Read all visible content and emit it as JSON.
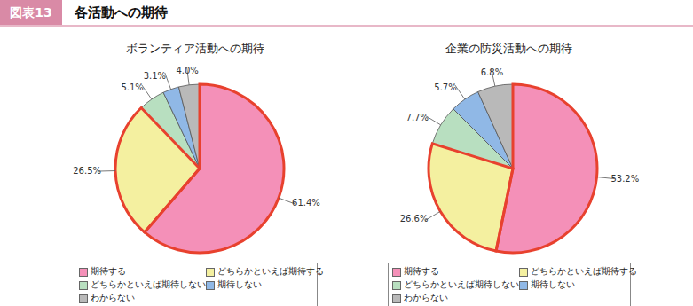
{
  "header": {
    "label": "図表13",
    "title": "各活動への期待"
  },
  "chart_data": [
    {
      "type": "pie",
      "title": "ボランティア活動への期待",
      "categories": [
        "期待する",
        "どちらかといえば期待する",
        "どちらかといえば期待しない",
        "期待しない",
        "わからない"
      ],
      "values": [
        61.4,
        26.5,
        5.1,
        3.1,
        4.0
      ],
      "value_labels": [
        "61.4%",
        "26.5%",
        "5.1%",
        "3.1%",
        "4.0%"
      ],
      "colors": [
        "#f490b8",
        "#f4f0a0",
        "#b8dfc0",
        "#90b8e6",
        "#b9b9b9"
      ]
    },
    {
      "type": "pie",
      "title": "企業の防災活動への期待",
      "categories": [
        "期待する",
        "どちらかといえば期待する",
        "どちらかといえば期待しない",
        "期待しない",
        "わからない"
      ],
      "values": [
        53.2,
        26.6,
        7.7,
        5.7,
        6.8
      ],
      "value_labels": [
        "53.2%",
        "26.6%",
        "7.7%",
        "5.7%",
        "6.8%"
      ],
      "colors": [
        "#f490b8",
        "#f4f0a0",
        "#b8dfc0",
        "#90b8e6",
        "#b9b9b9"
      ]
    }
  ]
}
